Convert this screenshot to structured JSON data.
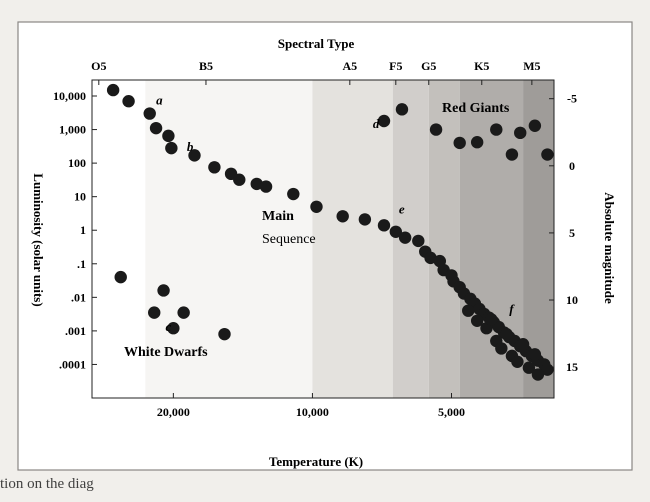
{
  "chart_data": {
    "type": "scatter",
    "title": "Spectral Type",
    "xlabel": "Temperature (K)",
    "ylabel_left": "Luminosity (solar units)",
    "ylabel_right": "Absolute magnitude",
    "x_reversed": true,
    "y_scale": "log",
    "xlim": [
      3000,
      30000
    ],
    "ylim_luminosity": [
      1e-05,
      30000
    ],
    "x_ticks": [
      {
        "value": 20000,
        "label": "20,000"
      },
      {
        "value": 10000,
        "label": "10,000"
      },
      {
        "value": 5000,
        "label": "5,000"
      }
    ],
    "spectral_ticks": [
      {
        "label": "O5",
        "temperature": 29000
      },
      {
        "label": "B5",
        "temperature": 17000
      },
      {
        "label": "A5",
        "temperature": 8300
      },
      {
        "label": "F5",
        "temperature": 6600
      },
      {
        "label": "G5",
        "temperature": 5600
      },
      {
        "label": "K5",
        "temperature": 4300
      },
      {
        "label": "M5",
        "temperature": 3350
      }
    ],
    "y_ticks_left": [
      {
        "value": 10000,
        "label": "10,000"
      },
      {
        "value": 1000,
        "label": "1,000"
      },
      {
        "value": 100,
        "label": "100"
      },
      {
        "value": 10,
        "label": "10"
      },
      {
        "value": 1,
        "label": "1"
      },
      {
        "value": 0.1,
        "label": ".1"
      },
      {
        "value": 0.01,
        "label": ".01"
      },
      {
        "value": 0.001,
        "label": ".001"
      },
      {
        "value": 0.0001,
        "label": ".0001"
      }
    ],
    "y_ticks_right": [
      {
        "magnitude": -5,
        "label": "-5"
      },
      {
        "magnitude": 0,
        "label": "0"
      },
      {
        "magnitude": 5,
        "label": "5"
      },
      {
        "magnitude": 10,
        "label": "10"
      },
      {
        "magnitude": 15,
        "label": "15"
      }
    ],
    "bands": [
      {
        "from": 23000,
        "to": 10000,
        "color": "#f6f5f3"
      },
      {
        "from": 10000,
        "to": 6700,
        "color": "#e4e2de"
      },
      {
        "from": 6700,
        "to": 5600,
        "color": "#d1cecb"
      },
      {
        "from": 5600,
        "to": 4800,
        "color": "#c3c0bc"
      },
      {
        "from": 4800,
        "to": 3500,
        "color": "#b0adaa"
      },
      {
        "from": 3500,
        "to": 3000,
        "color": "#9f9c99"
      }
    ],
    "points": [
      {
        "x": 27000,
        "y": 15000
      },
      {
        "x": 25000,
        "y": 7000
      },
      {
        "x": 22500,
        "y": 3000
      },
      {
        "x": 21800,
        "y": 1100
      },
      {
        "x": 20500,
        "y": 650
      },
      {
        "x": 20200,
        "y": 280
      },
      {
        "x": 18000,
        "y": 170
      },
      {
        "x": 16300,
        "y": 75
      },
      {
        "x": 15000,
        "y": 48
      },
      {
        "x": 14400,
        "y": 32
      },
      {
        "x": 13200,
        "y": 24
      },
      {
        "x": 12600,
        "y": 20
      },
      {
        "x": 11000,
        "y": 12
      },
      {
        "x": 9800,
        "y": 5
      },
      {
        "x": 8600,
        "y": 2.6
      },
      {
        "x": 7700,
        "y": 2.1
      },
      {
        "x": 7000,
        "y": 1.4
      },
      {
        "x": 6600,
        "y": 0.9
      },
      {
        "x": 6300,
        "y": 0.6
      },
      {
        "x": 5900,
        "y": 0.48
      },
      {
        "x": 5700,
        "y": 0.23
      },
      {
        "x": 5550,
        "y": 0.15
      },
      {
        "x": 5300,
        "y": 0.12
      },
      {
        "x": 5200,
        "y": 0.065
      },
      {
        "x": 5000,
        "y": 0.045
      },
      {
        "x": 4950,
        "y": 0.03
      },
      {
        "x": 4800,
        "y": 0.02
      },
      {
        "x": 4700,
        "y": 0.013
      },
      {
        "x": 4550,
        "y": 0.009
      },
      {
        "x": 4450,
        "y": 0.0065
      },
      {
        "x": 4350,
        "y": 0.0045
      },
      {
        "x": 4250,
        "y": 0.0032
      },
      {
        "x": 4150,
        "y": 0.0025
      },
      {
        "x": 4050,
        "y": 0.0018
      },
      {
        "x": 3950,
        "y": 0.0013
      },
      {
        "x": 3850,
        "y": 0.0009
      },
      {
        "x": 3750,
        "y": 0.00065
      },
      {
        "x": 3650,
        "y": 0.0005
      },
      {
        "x": 3550,
        "y": 0.00035
      },
      {
        "x": 3450,
        "y": 0.00025
      },
      {
        "x": 3350,
        "y": 0.00018
      },
      {
        "x": 3250,
        "y": 0.00013
      },
      {
        "x": 3150,
        "y": 0.0001
      },
      {
        "x": 3100,
        "y": 7e-05
      },
      {
        "x": 4600,
        "y": 0.004
      },
      {
        "x": 4400,
        "y": 0.002
      },
      {
        "x": 4200,
        "y": 0.0012
      },
      {
        "x": 4000,
        "y": 0.0005
      },
      {
        "x": 3900,
        "y": 0.0003
      },
      {
        "x": 3700,
        "y": 0.00018
      },
      {
        "x": 3600,
        "y": 0.00012
      },
      {
        "x": 3400,
        "y": 8e-05
      },
      {
        "x": 3250,
        "y": 5e-05
      },
      {
        "x": 4100,
        "y": 0.0022
      },
      {
        "x": 3800,
        "y": 0.0008
      },
      {
        "x": 3500,
        "y": 0.0004
      },
      {
        "x": 3300,
        "y": 0.0002
      },
      {
        "x": 7000,
        "y": 1800
      },
      {
        "x": 6400,
        "y": 4000
      },
      {
        "x": 5400,
        "y": 1000
      },
      {
        "x": 4800,
        "y": 400
      },
      {
        "x": 4400,
        "y": 420
      },
      {
        "x": 4000,
        "y": 1000
      },
      {
        "x": 3700,
        "y": 180
      },
      {
        "x": 3550,
        "y": 800
      },
      {
        "x": 3300,
        "y": 1300
      },
      {
        "x": 3100,
        "y": 180
      },
      {
        "x": 26000,
        "y": 0.04
      },
      {
        "x": 21000,
        "y": 0.016
      },
      {
        "x": 22000,
        "y": 0.0035
      },
      {
        "x": 19000,
        "y": 0.0035
      },
      {
        "x": 20000,
        "y": 0.0012
      },
      {
        "x": 15500,
        "y": 0.0008
      }
    ],
    "region_labels": {
      "main": "Main",
      "sequence": "Sequence",
      "giants": "Red Giants",
      "dwarfs": "White Dwarfs"
    },
    "point_labels": [
      {
        "text": "a",
        "x": 21800,
        "y": 5500
      },
      {
        "text": "b",
        "x": 18700,
        "y": 230
      },
      {
        "text": "c",
        "x": 20800,
        "y": 0.001
      },
      {
        "text": "d",
        "x": 7400,
        "y": 1100
      },
      {
        "text": "e",
        "x": 6500,
        "y": 3.2
      },
      {
        "text": "f",
        "x": 3750,
        "y": 0.0033
      }
    ]
  },
  "caption": "tion on the diag"
}
